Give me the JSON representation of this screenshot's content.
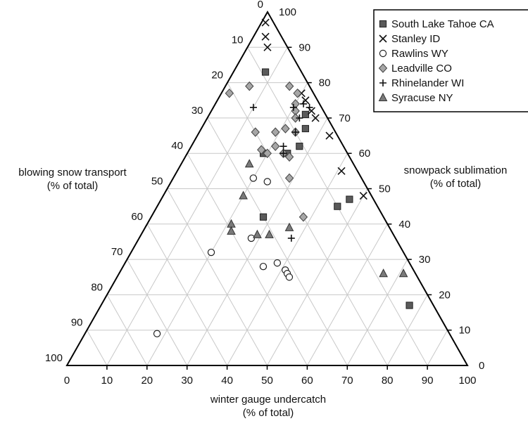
{
  "chart_data": {
    "type": "scatter",
    "subtype": "ternary",
    "title": "",
    "axes": {
      "bottom": {
        "label_line1": "winter gauge undercatch",
        "label_line2": "(% of total)",
        "range": [
          0,
          100
        ]
      },
      "left": {
        "label_line1": "blowing snow transport",
        "label_line2": "(% of total)",
        "range": [
          0,
          100
        ]
      },
      "right": {
        "label_line1": "snowpack sublimation",
        "label_line2": "(% of total)",
        "range": [
          0,
          100
        ]
      }
    },
    "tick_labels": [
      "0",
      "10",
      "20",
      "30",
      "40",
      "50",
      "60",
      "70",
      "80",
      "90",
      "100"
    ],
    "grid": true,
    "legend_position": "top-right",
    "series": [
      {
        "name": "South Lake Tahoe CA",
        "marker": "square",
        "color": "#5a5a5a",
        "points": [
          {
            "undercatch": 8,
            "sublimation": 83,
            "blowing": 9
          },
          {
            "undercatch": 19,
            "sublimation": 60,
            "blowing": 21
          },
          {
            "undercatch": 24,
            "sublimation": 71,
            "blowing": 5
          },
          {
            "undercatch": 26,
            "sublimation": 67,
            "blowing": 7
          },
          {
            "undercatch": 27,
            "sublimation": 62,
            "blowing": 11
          },
          {
            "undercatch": 25,
            "sublimation": 60,
            "blowing": 15
          },
          {
            "undercatch": 28,
            "sublimation": 42,
            "blowing": 30
          },
          {
            "undercatch": 45,
            "sublimation": 45,
            "blowing": 10
          },
          {
            "undercatch": 47,
            "sublimation": 47,
            "blowing": 6
          },
          {
            "undercatch": 77,
            "sublimation": 17,
            "blowing": 6
          }
        ]
      },
      {
        "name": "Stanley ID",
        "marker": "x",
        "color": "#111111",
        "points": [
          {
            "undercatch": 1,
            "sublimation": 97,
            "blowing": 2
          },
          {
            "undercatch": 3,
            "sublimation": 93,
            "blowing": 4
          },
          {
            "undercatch": 5,
            "sublimation": 90,
            "blowing": 5
          },
          {
            "undercatch": 20,
            "sublimation": 77,
            "blowing": 3
          },
          {
            "undercatch": 22,
            "sublimation": 75,
            "blowing": 3
          },
          {
            "undercatch": 25,
            "sublimation": 72,
            "blowing": 3
          },
          {
            "undercatch": 27,
            "sublimation": 70,
            "blowing": 3
          },
          {
            "undercatch": 33,
            "sublimation": 65,
            "blowing": 2
          },
          {
            "undercatch": 41,
            "sublimation": 55,
            "blowing": 4
          },
          {
            "undercatch": 50,
            "sublimation": 48,
            "blowing": 2
          }
        ]
      },
      {
        "name": "Rawlins WY",
        "marker": "circle",
        "color": "#ffffff",
        "points": [
          {
            "undercatch": 18,
            "sublimation": 9,
            "blowing": 73
          },
          {
            "undercatch": 20,
            "sublimation": 32,
            "blowing": 48
          },
          {
            "undercatch": 28,
            "sublimation": 36,
            "blowing": 36
          },
          {
            "undercatch": 35,
            "sublimation": 28,
            "blowing": 37
          },
          {
            "undercatch": 38,
            "sublimation": 29,
            "blowing": 33
          },
          {
            "undercatch": 41,
            "sublimation": 27,
            "blowing": 32
          },
          {
            "undercatch": 42,
            "sublimation": 26,
            "blowing": 32
          },
          {
            "undercatch": 43,
            "sublimation": 25,
            "blowing": 32
          },
          {
            "undercatch": 20,
            "sublimation": 53,
            "blowing": 27
          },
          {
            "undercatch": 24,
            "sublimation": 52,
            "blowing": 24
          }
        ]
      },
      {
        "name": "Leadville CO",
        "marker": "diamond",
        "color": "#a6a6a6",
        "points": [
          {
            "undercatch": 2,
            "sublimation": 77,
            "blowing": 21
          },
          {
            "undercatch": 6,
            "sublimation": 79,
            "blowing": 15
          },
          {
            "undercatch": 16,
            "sublimation": 79,
            "blowing": 5
          },
          {
            "undercatch": 19,
            "sublimation": 77,
            "blowing": 4
          },
          {
            "undercatch": 20,
            "sublimation": 74,
            "blowing": 6
          },
          {
            "undercatch": 21,
            "sublimation": 72,
            "blowing": 7
          },
          {
            "undercatch": 22,
            "sublimation": 70,
            "blowing": 8
          },
          {
            "undercatch": 14,
            "sublimation": 66,
            "blowing": 20
          },
          {
            "undercatch": 19,
            "sublimation": 66,
            "blowing": 15
          },
          {
            "undercatch": 21,
            "sublimation": 67,
            "blowing": 12
          },
          {
            "undercatch": 24,
            "sublimation": 66,
            "blowing": 10
          },
          {
            "undercatch": 21,
            "sublimation": 62,
            "blowing": 17
          },
          {
            "undercatch": 18,
            "sublimation": 61,
            "blowing": 21
          },
          {
            "undercatch": 20,
            "sublimation": 60,
            "blowing": 20
          },
          {
            "undercatch": 24,
            "sublimation": 60,
            "blowing": 16
          },
          {
            "undercatch": 26,
            "sublimation": 59,
            "blowing": 15
          },
          {
            "undercatch": 29,
            "sublimation": 53,
            "blowing": 18
          },
          {
            "undercatch": 38,
            "sublimation": 42,
            "blowing": 20
          }
        ]
      },
      {
        "name": "Rhinelander WI",
        "marker": "plus",
        "color": "#111111",
        "points": [
          {
            "undercatch": 10,
            "sublimation": 73,
            "blowing": 17
          },
          {
            "undercatch": 20,
            "sublimation": 73,
            "blowing": 7
          },
          {
            "undercatch": 22,
            "sublimation": 74,
            "blowing": 4
          },
          {
            "undercatch": 24,
            "sublimation": 73,
            "blowing": 3
          },
          {
            "undercatch": 23,
            "sublimation": 70,
            "blowing": 7
          },
          {
            "undercatch": 24,
            "sublimation": 66,
            "blowing": 10
          },
          {
            "undercatch": 23,
            "sublimation": 62,
            "blowing": 15
          },
          {
            "undercatch": 24,
            "sublimation": 60,
            "blowing": 16
          },
          {
            "undercatch": 38,
            "sublimation": 36,
            "blowing": 26
          }
        ]
      },
      {
        "name": "Syracuse NY",
        "marker": "triangle",
        "color": "#7a7a7a",
        "points": [
          {
            "undercatch": 17,
            "sublimation": 57,
            "blowing": 26
          },
          {
            "undercatch": 20,
            "sublimation": 48,
            "blowing": 32
          },
          {
            "undercatch": 21,
            "sublimation": 40,
            "blowing": 39
          },
          {
            "undercatch": 22,
            "sublimation": 38,
            "blowing": 40
          },
          {
            "undercatch": 29,
            "sublimation": 37,
            "blowing": 34
          },
          {
            "undercatch": 32,
            "sublimation": 37,
            "blowing": 31
          },
          {
            "undercatch": 36,
            "sublimation": 39,
            "blowing": 25
          },
          {
            "undercatch": 71,
            "sublimation": 26,
            "blowing": 3
          },
          {
            "undercatch": 66,
            "sublimation": 26,
            "blowing": 8
          }
        ]
      }
    ]
  }
}
